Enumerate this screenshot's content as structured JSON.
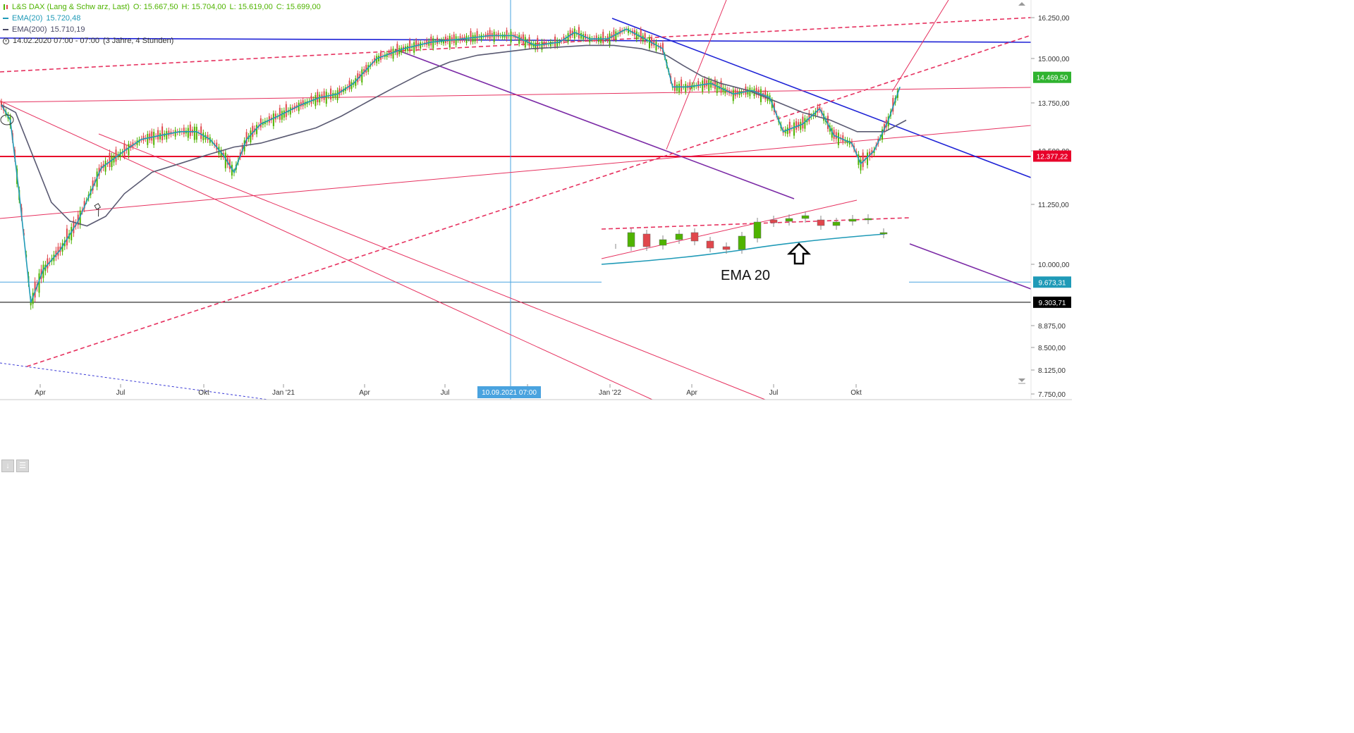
{
  "legend": {
    "symbol_line": "L&S DAX (Lang & Schw arz, Last)",
    "open": "O: 15.667,50",
    "high": "H: 15.704,00",
    "low": "L: 15.619,00",
    "close": "C: 15.699,00",
    "ema20_label": "EMA(20)",
    "ema20_value": "15.720,48",
    "ema200_label": "EMA(200)",
    "ema200_value": "15.710,19",
    "range_label": "14.02.2020 07:00 - 07:00",
    "range_span": "(3 Jahre, 4 Stunden)"
  },
  "colors": {
    "up": "#4fb300",
    "down": "#e0474c",
    "ema20": "#1f9ab7",
    "ema200": "#5a5a72",
    "trend_red": "#e6315f",
    "trend_blue": "#1e22d6",
    "trend_purple": "#7b2aa6",
    "price_tag": "#2fb32f",
    "support_red": "#e8002a",
    "crosshair": "#4aa3df"
  },
  "crosshair_label": "10.09.2021 07:00",
  "inset_label": "EMA 20",
  "chart_data": {
    "type": "line",
    "title": "L&S DAX (Lang & Schw arz, Last)",
    "x_tick_labels": [
      "Apr",
      "Jul",
      "Okt",
      "Jan '21",
      "Apr",
      "Jul",
      "Okt",
      "Jan '22",
      "Apr",
      "Jul",
      "Okt"
    ],
    "y_tick_labels": [
      "16.250,00",
      "15.000,00",
      "13.750,00",
      "12.500,00",
      "11.250,00",
      "10.000,00",
      "8.875,00",
      "8.500,00",
      "8.125,00",
      "7.750,00"
    ],
    "price_tags": [
      {
        "label": "14.469,50",
        "value": 14469.5,
        "color": "#2fb32f"
      },
      {
        "label": "12.377,22",
        "value": 12377.22,
        "color": "#e8002a"
      },
      {
        "label": "9.673,31",
        "value": 9673.31,
        "color": "#1f9ab7"
      },
      {
        "label": "9.303,71",
        "value": 9303.71,
        "color": "#000000"
      }
    ],
    "series": [
      {
        "name": "EMA(20)",
        "x": [
          "2020-02-14",
          "2020-02-24",
          "2020-03-05",
          "2020-03-18",
          "2020-04-01",
          "2020-04-20",
          "2020-05-10",
          "2020-06-05",
          "2020-07-01",
          "2020-07-20",
          "2020-08-10",
          "2020-09-01",
          "2020-09-20",
          "2020-10-05",
          "2020-10-20",
          "2020-11-01",
          "2020-11-15",
          "2020-12-01",
          "2020-12-20",
          "2021-01-15",
          "2021-02-05",
          "2021-02-25",
          "2021-03-15",
          "2021-04-10",
          "2021-05-10",
          "2021-06-10",
          "2021-07-15",
          "2021-08-15",
          "2021-09-10",
          "2021-10-05",
          "2021-11-01",
          "2021-11-18",
          "2021-12-05",
          "2021-12-25",
          "2022-01-15",
          "2022-02-05",
          "2022-02-25",
          "2022-03-08",
          "2022-03-25",
          "2022-04-20",
          "2022-05-15",
          "2022-06-05",
          "2022-06-25",
          "2022-07-10",
          "2022-08-01",
          "2022-08-20",
          "2022-09-05",
          "2022-09-25",
          "2022-10-05",
          "2022-10-20",
          "2022-11-05",
          "2022-11-18"
        ],
        "y": [
          13700,
          13300,
          11500,
          9300,
          9900,
          10300,
          10900,
          12100,
          12500,
          12800,
          12900,
          13000,
          13000,
          12800,
          12400,
          12000,
          12800,
          13200,
          13400,
          13700,
          13900,
          14000,
          14300,
          15000,
          15300,
          15500,
          15600,
          15700,
          15700,
          15400,
          15500,
          15800,
          15600,
          15600,
          15900,
          15600,
          15300,
          14200,
          14200,
          14300,
          14000,
          14100,
          13900,
          13000,
          13200,
          13600,
          12900,
          12700,
          12200,
          12500,
          13300,
          14200
        ]
      },
      {
        "name": "EMA(200)",
        "x": [
          "2020-02-14",
          "2020-03-01",
          "2020-03-20",
          "2020-04-10",
          "2020-05-01",
          "2020-05-20",
          "2020-06-10",
          "2020-07-01",
          "2020-08-01",
          "2020-09-01",
          "2020-10-01",
          "2020-11-01",
          "2020-12-01",
          "2021-01-01",
          "2021-02-01",
          "2021-03-01",
          "2021-04-01",
          "2021-05-01",
          "2021-06-01",
          "2021-07-01",
          "2021-08-01",
          "2021-09-01",
          "2021-10-01",
          "2021-11-01",
          "2021-12-01",
          "2022-01-01",
          "2022-02-01",
          "2022-03-01",
          "2022-03-20",
          "2022-04-10",
          "2022-05-01",
          "2022-06-01",
          "2022-07-01",
          "2022-08-01",
          "2022-09-01",
          "2022-10-01",
          "2022-11-01",
          "2022-11-25"
        ],
        "y": [
          13700,
          13500,
          12400,
          11300,
          10900,
          10800,
          11000,
          11500,
          12000,
          12200,
          12400,
          12600,
          12700,
          12900,
          13100,
          13400,
          13800,
          14200,
          14600,
          14900,
          15100,
          15200,
          15300,
          15350,
          15400,
          15400,
          15300,
          15100,
          14800,
          14500,
          14300,
          14100,
          13800,
          13500,
          13300,
          13000,
          13000,
          13300
        ]
      }
    ],
    "ylim": [
      7750,
      16500
    ],
    "scale": "linear",
    "grid": false,
    "legend_placement": "top-left"
  }
}
